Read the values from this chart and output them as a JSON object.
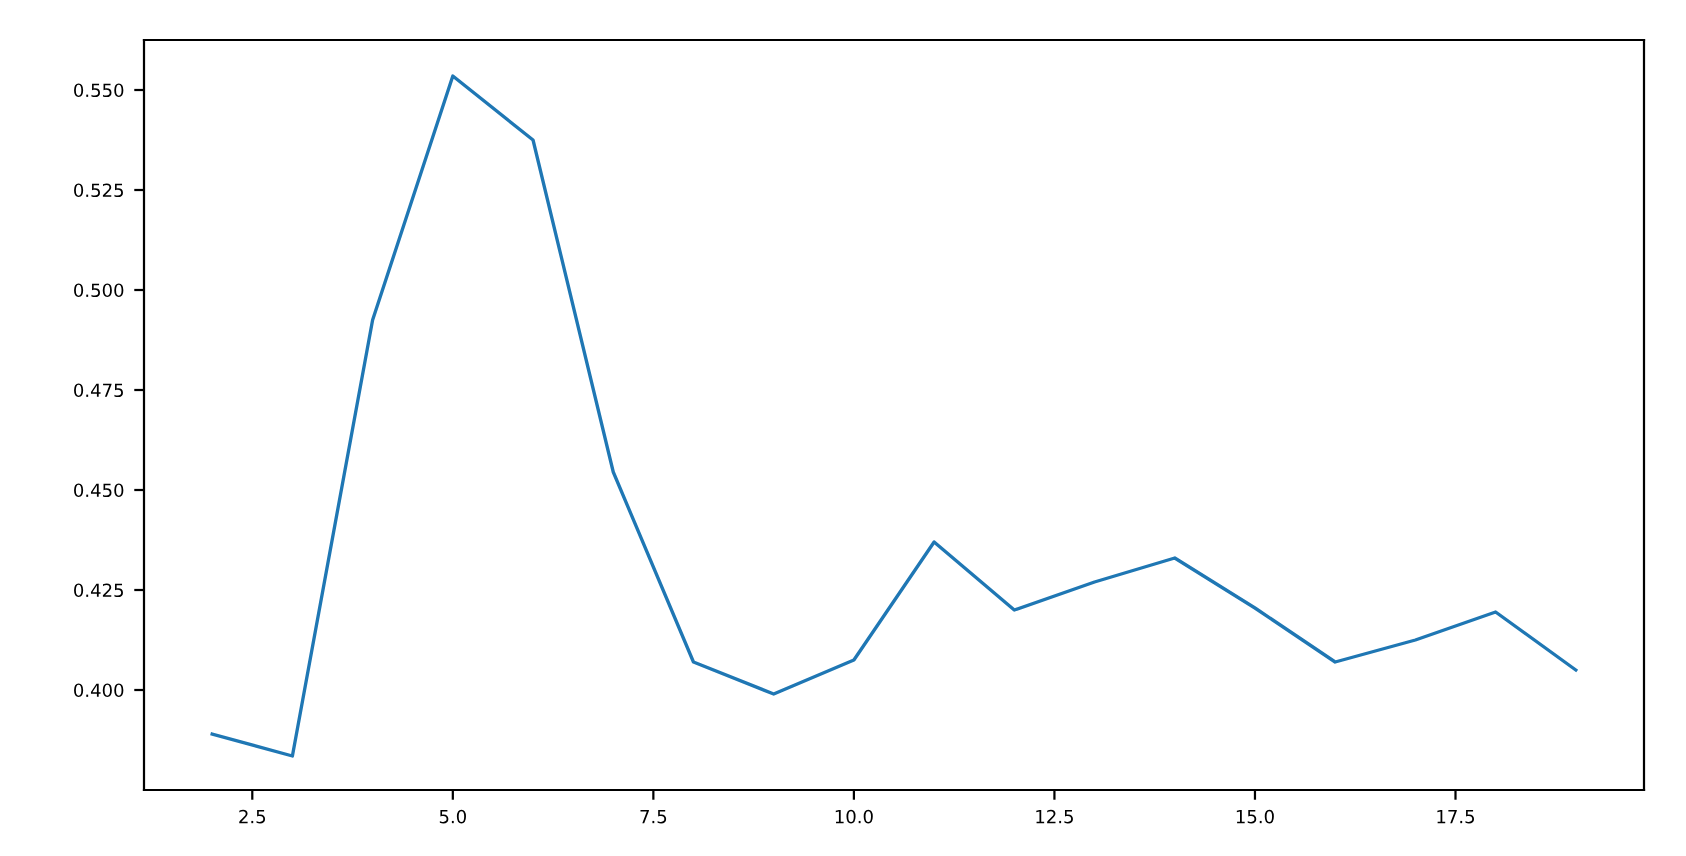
{
  "chart_data": {
    "type": "line",
    "x": [
      2,
      3,
      4,
      5,
      6,
      7,
      8,
      9,
      10,
      11,
      12,
      13,
      14,
      15,
      16,
      17,
      18,
      19
    ],
    "series": [
      {
        "color": "#1f77b4",
        "values": [
          0.389,
          0.3835,
          0.4925,
          0.5535,
          0.5375,
          0.4545,
          0.407,
          0.399,
          0.4075,
          0.437,
          0.42,
          0.427,
          0.433,
          0.4205,
          0.407,
          0.4125,
          0.4195,
          0.405
        ]
      }
    ],
    "xlim": [
      1.15,
      19.85
    ],
    "ylim": [
      0.375,
      0.5625
    ],
    "xticks": [
      {
        "value": 2.5,
        "label": "2.5"
      },
      {
        "value": 5,
        "label": "5.0"
      },
      {
        "value": 7.5,
        "label": "7.5"
      },
      {
        "value": 10,
        "label": "10.0"
      },
      {
        "value": 12.5,
        "label": "12.5"
      },
      {
        "value": 15,
        "label": "15.0"
      },
      {
        "value": 17.5,
        "label": "17.5"
      }
    ],
    "yticks": [
      {
        "value": 0.4,
        "label": "0.400"
      },
      {
        "value": 0.425,
        "label": "0.425"
      },
      {
        "value": 0.45,
        "label": "0.450"
      },
      {
        "value": 0.475,
        "label": "0.475"
      },
      {
        "value": 0.5,
        "label": "0.500"
      },
      {
        "value": 0.525,
        "label": "0.525"
      },
      {
        "value": 0.55,
        "label": "0.550"
      }
    ],
    "grid": false,
    "legend": false,
    "marker": "none",
    "line_style": "solid"
  }
}
